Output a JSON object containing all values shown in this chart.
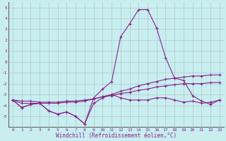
{
  "xlabel": "Windchill (Refroidissement éolien,°C)",
  "background_color": "#c8eef0",
  "grid_color": "#b0c8cc",
  "line_color": "#882288",
  "hours": [
    0,
    1,
    2,
    3,
    4,
    5,
    6,
    7,
    8,
    9,
    10,
    11,
    12,
    13,
    14,
    15,
    16,
    17,
    18,
    19,
    20,
    21,
    22,
    23
  ],
  "line1": [
    -3.5,
    -4.2,
    -3.9,
    -3.8,
    -4.5,
    -4.8,
    -4.6,
    -5.0,
    -5.7,
    -3.3,
    -2.5,
    -1.8,
    2.3,
    3.5,
    4.8,
    4.8,
    3.1,
    0.4,
    -1.5,
    -1.7,
    -3.1,
    -3.6,
    -3.9,
    -3.5
  ],
  "line2": [
    -3.5,
    -3.8,
    -3.8,
    -3.8,
    -3.8,
    -3.8,
    -3.7,
    -3.7,
    -3.6,
    -3.4,
    -3.2,
    -3.0,
    -2.7,
    -2.5,
    -2.2,
    -2.0,
    -1.8,
    -1.6,
    -1.5,
    -1.4,
    -1.3,
    -1.3,
    -1.2,
    -1.2
  ],
  "line3": [
    -3.5,
    -3.6,
    -3.6,
    -3.7,
    -3.7,
    -3.7,
    -3.6,
    -3.6,
    -3.5,
    -3.4,
    -3.2,
    -3.1,
    -2.9,
    -2.8,
    -2.6,
    -2.5,
    -2.3,
    -2.2,
    -2.1,
    -2.0,
    -2.0,
    -2.0,
    -1.9,
    -1.9
  ],
  "line4": [
    -3.5,
    -4.2,
    -3.9,
    -3.8,
    -4.5,
    -4.8,
    -4.6,
    -5.0,
    -5.7,
    -3.8,
    -3.3,
    -3.0,
    -3.3,
    -3.5,
    -3.5,
    -3.5,
    -3.3,
    -3.3,
    -3.5,
    -3.7,
    -3.6,
    -3.8,
    -3.7,
    -3.5
  ],
  "ylim": [
    -6,
    5.5
  ],
  "yticks": [
    -5,
    -4,
    -3,
    -2,
    -1,
    0,
    1,
    2,
    3,
    4,
    5
  ],
  "xticks": [
    0,
    1,
    2,
    3,
    4,
    5,
    6,
    7,
    8,
    9,
    10,
    11,
    12,
    13,
    14,
    15,
    16,
    17,
    18,
    19,
    20,
    21,
    22,
    23
  ]
}
